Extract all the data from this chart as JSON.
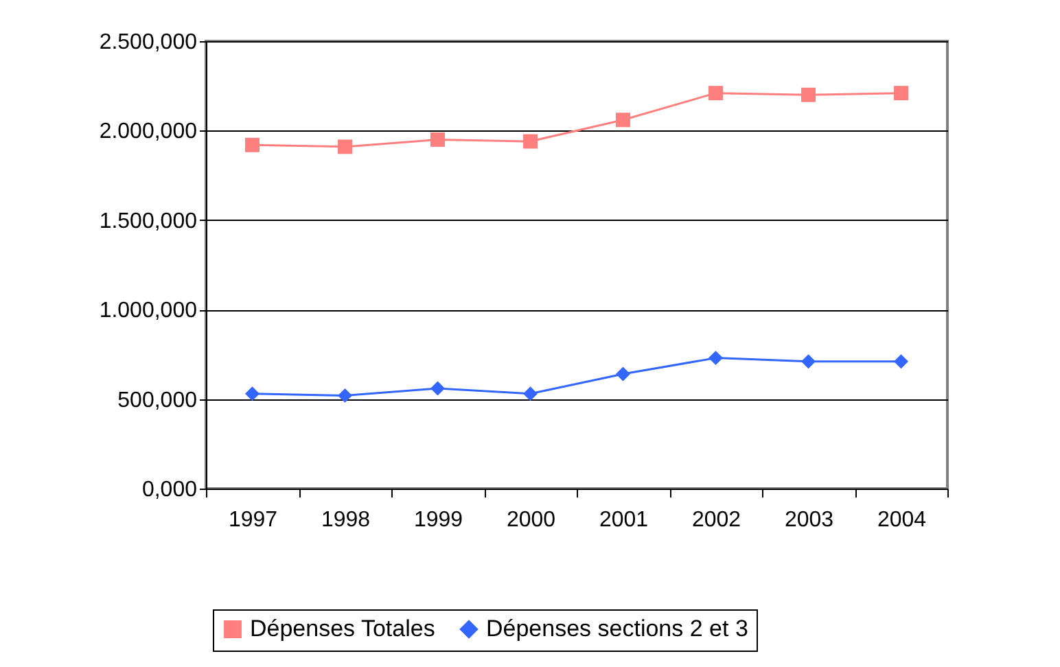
{
  "chart_data": {
    "type": "line",
    "categories": [
      "1997",
      "1998",
      "1999",
      "2000",
      "2001",
      "2002",
      "2003",
      "2004"
    ],
    "series": [
      {
        "name": "Dépenses Totales",
        "color": "#ff7f7f",
        "marker": "square",
        "values": [
          1920,
          1910,
          1950,
          1940,
          2060,
          2210,
          2200,
          2210
        ]
      },
      {
        "name": "Dépenses sections 2 et 3",
        "color": "#3366ff",
        "marker": "diamond",
        "values": [
          530,
          520,
          560,
          530,
          640,
          730,
          710,
          710
        ]
      }
    ],
    "ylim": [
      0,
      2500
    ],
    "yticks": [
      {
        "value": 0,
        "label": "0,000"
      },
      {
        "value": 500,
        "label": "500,000"
      },
      {
        "value": 1000,
        "label": "1.000,000"
      },
      {
        "value": 1500,
        "label": "1.500,000"
      },
      {
        "value": 2000,
        "label": "2.000,000"
      },
      {
        "value": 2500,
        "label": "2.500,000"
      }
    ],
    "grid": "y",
    "legend": "bottom",
    "line_style": "solid"
  }
}
